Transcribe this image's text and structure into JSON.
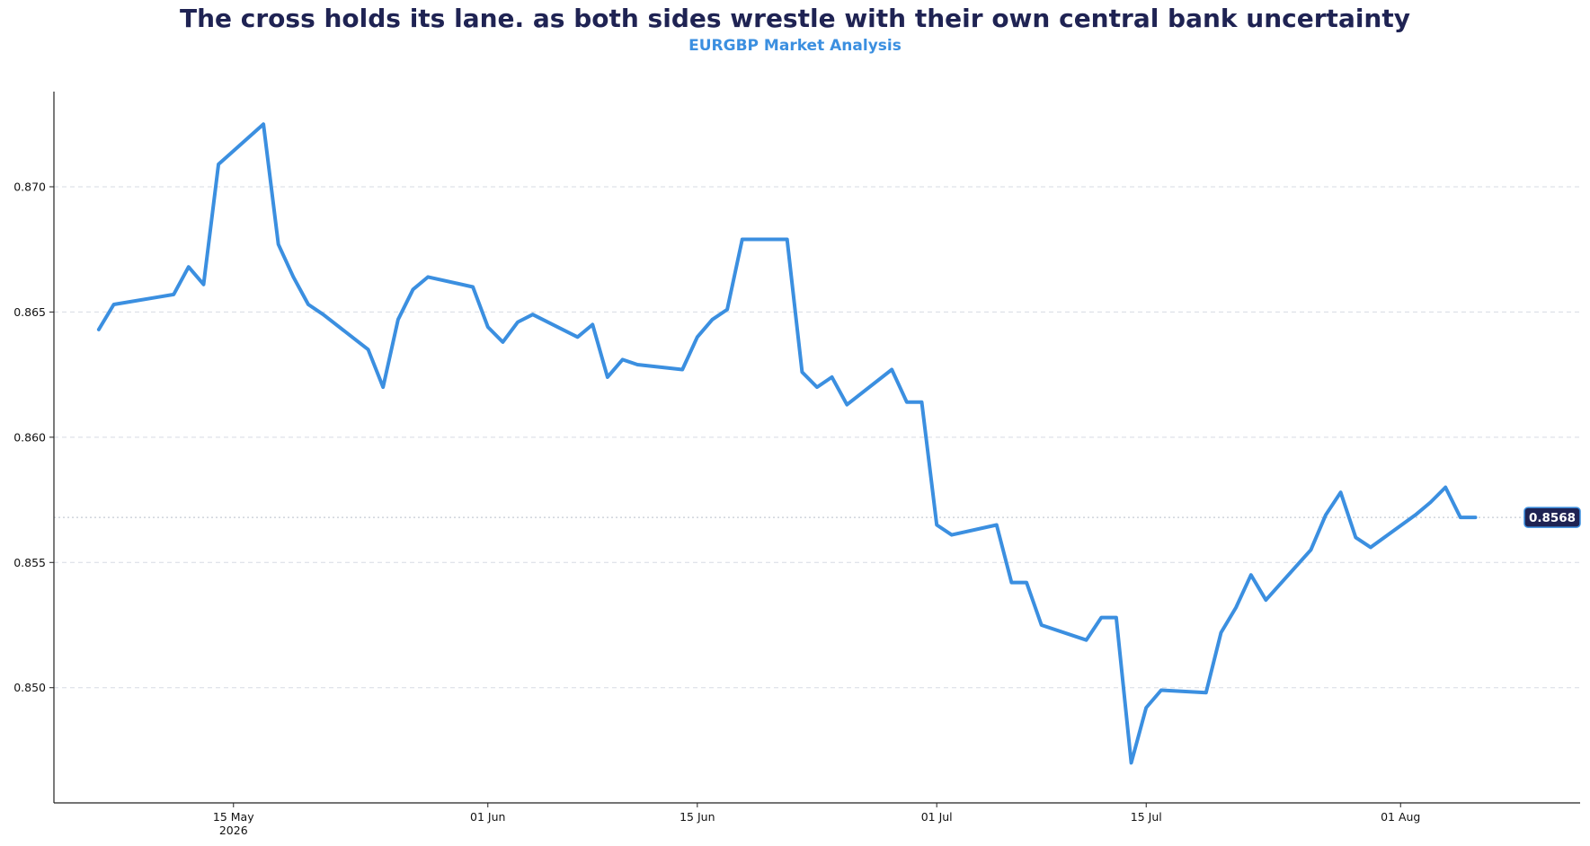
{
  "chart_data": {
    "type": "line",
    "title": "The cross holds its lane. as both sides wrestle with their own central bank uncertainty",
    "subtitle": "EURGBP Market Analysis",
    "xlabel": "",
    "ylabel": "",
    "ylim": [
      0.8454,
      0.8738
    ],
    "xlim": [
      "2026-05-03",
      "2026-08-13"
    ],
    "grid": "horizontal-dashed",
    "legend": "none",
    "colors": {
      "line": "#3b8fe0",
      "title": "#1f2353",
      "subtitle": "#3b8fe0",
      "label_bg": "#1f2353",
      "grid": "#d7dbe3",
      "axis": "#222222"
    },
    "y_ticks": [
      {
        "value": 0.85,
        "label": "0.850"
      },
      {
        "value": 0.855,
        "label": "0.855"
      },
      {
        "value": 0.86,
        "label": "0.860"
      },
      {
        "value": 0.865,
        "label": "0.865"
      },
      {
        "value": 0.87,
        "label": "0.870"
      }
    ],
    "x_ticks": [
      {
        "date": "2026-05-15",
        "label": "15 May",
        "sublabel": "2026"
      },
      {
        "date": "2026-06-01",
        "label": "01 Jun",
        "sublabel": ""
      },
      {
        "date": "2026-06-15",
        "label": "15 Jun",
        "sublabel": ""
      },
      {
        "date": "2026-07-01",
        "label": "01 Jul",
        "sublabel": ""
      },
      {
        "date": "2026-07-15",
        "label": "15 Jul",
        "sublabel": ""
      },
      {
        "date": "2026-08-01",
        "label": "01 Aug",
        "sublabel": ""
      }
    ],
    "last_value_label": "0.8568",
    "last_value": 0.8568,
    "series": [
      {
        "x": [
          "2026-05-06",
          "2026-05-07",
          "2026-05-10",
          "2026-05-11",
          "2026-05-12",
          "2026-05-13",
          "2026-05-14",
          "2026-05-17",
          "2026-05-18",
          "2026-05-19",
          "2026-05-20",
          "2026-05-21",
          "2026-05-24",
          "2026-05-25",
          "2026-05-26",
          "2026-05-27",
          "2026-05-28",
          "2026-05-31",
          "2026-06-01",
          "2026-06-02",
          "2026-06-03",
          "2026-06-04",
          "2026-06-07",
          "2026-06-08",
          "2026-06-09",
          "2026-06-10",
          "2026-06-11",
          "2026-06-14",
          "2026-06-15",
          "2026-06-16",
          "2026-06-17",
          "2026-06-18",
          "2026-06-21",
          "2026-06-22",
          "2026-06-23",
          "2026-06-24",
          "2026-06-25",
          "2026-06-28",
          "2026-06-29",
          "2026-06-30",
          "2026-07-01",
          "2026-07-02",
          "2026-07-05",
          "2026-07-06",
          "2026-07-07",
          "2026-07-08",
          "2026-07-11",
          "2026-07-12",
          "2026-07-13",
          "2026-07-14",
          "2026-07-15",
          "2026-07-16",
          "2026-07-19",
          "2026-07-20",
          "2026-07-21",
          "2026-07-22",
          "2026-07-23",
          "2026-07-26",
          "2026-07-27",
          "2026-07-28",
          "2026-07-29",
          "2026-07-30",
          "2026-08-02",
          "2026-08-03",
          "2026-08-04",
          "2026-08-05",
          "2026-08-06"
        ],
        "values": [
          0.8643,
          0.8653,
          0.8656,
          0.8657,
          0.8668,
          0.8661,
          0.8709,
          0.8725,
          0.8677,
          0.8664,
          0.8653,
          0.8649,
          0.8635,
          0.862,
          0.8647,
          0.8659,
          0.8664,
          0.866,
          0.8644,
          0.8638,
          0.8646,
          0.8649,
          0.864,
          0.8645,
          0.8624,
          0.8631,
          0.8629,
          0.8627,
          0.864,
          0.8647,
          0.8651,
          0.8679,
          0.8679,
          0.8626,
          0.862,
          0.8624,
          0.8613,
          0.8627,
          0.8614,
          0.8614,
          0.8565,
          0.8561,
          0.8565,
          0.8542,
          0.8542,
          0.8525,
          0.8519,
          0.8528,
          0.8528,
          0.847,
          0.8492,
          0.8499,
          0.8498,
          0.8522,
          0.8532,
          0.8545,
          0.8535,
          0.8555,
          0.8569,
          0.8578,
          0.856,
          0.8556,
          0.8569,
          0.8574,
          0.858,
          0.8568,
          0.8568
        ]
      }
    ]
  }
}
